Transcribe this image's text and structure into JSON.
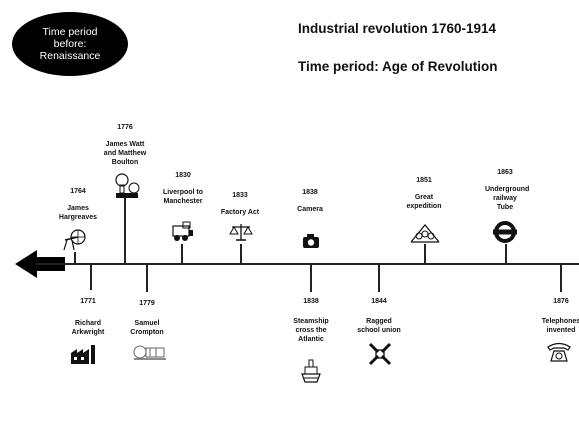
{
  "header": {
    "badge_lines": [
      "Time period",
      "before:",
      "Renaissance"
    ],
    "title": "Industrial revolution 1760-1914",
    "period": "Time period: Age of Revolution"
  },
  "events": [
    {
      "id": "e1764",
      "year": "1764",
      "text": "James Hargreaves",
      "icon": "spinning-wheel-icon"
    },
    {
      "id": "e1771",
      "year": "1771",
      "text": "Richard Arkwright",
      "icon": "factory-icon"
    },
    {
      "id": "e1776",
      "year": "1776",
      "text": "James Watt and Matthew Boulton",
      "icon": "steam-engine-icon"
    },
    {
      "id": "e1779",
      "year": "1779",
      "text": "Samuel Crompton",
      "icon": "spinning-mule-icon"
    },
    {
      "id": "e1830",
      "year": "1830",
      "text": "Liverpool to Manchester",
      "icon": "locomotive-icon"
    },
    {
      "id": "e1833",
      "year": "1833",
      "text": "Factory Act",
      "icon": "scales-icon"
    },
    {
      "id": "e1838a",
      "year": "1838",
      "text": "Camera",
      "icon": "camera-icon"
    },
    {
      "id": "e1838b",
      "year": "1838",
      "text": "Steamship cross the Atlantic",
      "icon": "steamship-icon"
    },
    {
      "id": "e1844",
      "year": "1844",
      "text": "Ragged school union",
      "icon": "handshake-icon"
    },
    {
      "id": "e1851",
      "year": "1851",
      "text": "Great expedition",
      "icon": "exhibition-hall-icon"
    },
    {
      "id": "e1863",
      "year": "1863",
      "text": "Underground railway Tube",
      "icon": "underground-roundel-icon"
    },
    {
      "id": "e1876",
      "year": "1876",
      "text": "Telephones invented",
      "icon": "telephone-icon"
    }
  ]
}
